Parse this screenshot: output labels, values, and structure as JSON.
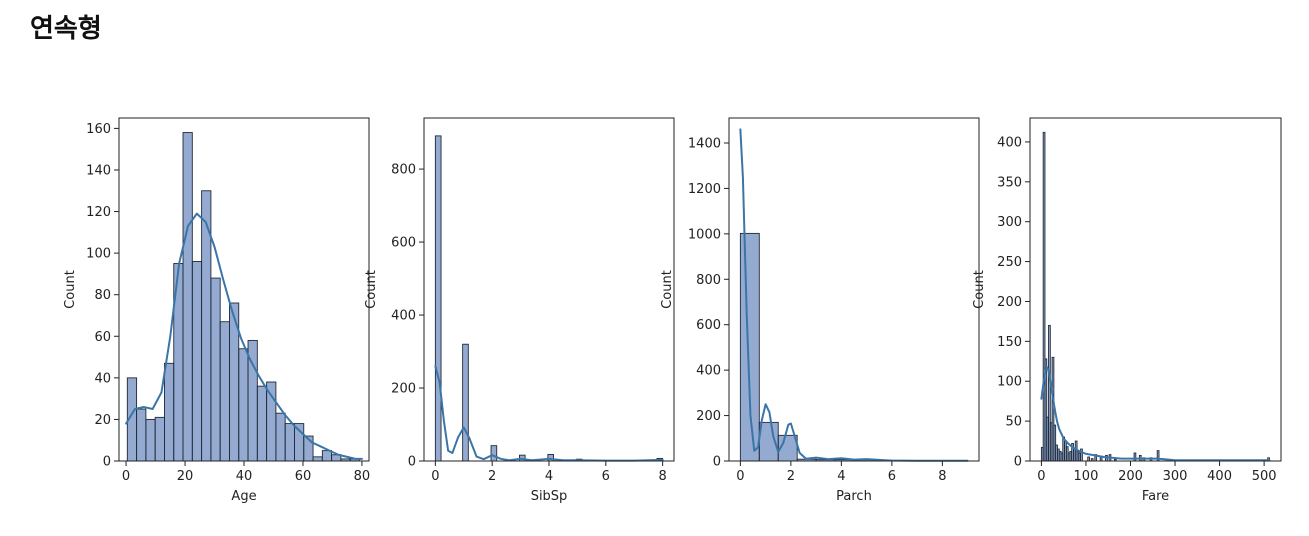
{
  "heading": "연속형",
  "style": {
    "bar_fill": "#4c72b0",
    "bar_fill_opacity": 0.6,
    "bar_edge": "#1f2a38",
    "kde_color": "#3b75a8"
  },
  "chart_data": [
    {
      "type": "bar",
      "xlabel": "Age",
      "ylabel": "Count",
      "xlim": [
        -2.4,
        82.4
      ],
      "ylim": [
        0,
        165
      ],
      "xticks": [
        0,
        20,
        40,
        60,
        80
      ],
      "yticks": [
        0,
        20,
        40,
        60,
        80,
        100,
        120,
        140,
        160
      ],
      "grid": false,
      "bins": [
        {
          "x0": 0.42,
          "x1": 3.57,
          "count": 40
        },
        {
          "x0": 3.57,
          "x1": 6.72,
          "count": 25
        },
        {
          "x0": 6.72,
          "x1": 9.87,
          "count": 20
        },
        {
          "x0": 9.87,
          "x1": 13.02,
          "count": 21
        },
        {
          "x0": 13.02,
          "x1": 16.17,
          "count": 47
        },
        {
          "x0": 16.17,
          "x1": 19.32,
          "count": 95
        },
        {
          "x0": 19.32,
          "x1": 22.47,
          "count": 158
        },
        {
          "x0": 22.47,
          "x1": 25.62,
          "count": 96
        },
        {
          "x0": 25.62,
          "x1": 28.77,
          "count": 130
        },
        {
          "x0": 28.77,
          "x1": 31.92,
          "count": 88
        },
        {
          "x0": 31.92,
          "x1": 35.07,
          "count": 67
        },
        {
          "x0": 35.07,
          "x1": 38.22,
          "count": 76
        },
        {
          "x0": 38.22,
          "x1": 41.37,
          "count": 54
        },
        {
          "x0": 41.37,
          "x1": 44.52,
          "count": 58
        },
        {
          "x0": 44.52,
          "x1": 47.67,
          "count": 36
        },
        {
          "x0": 47.67,
          "x1": 50.82,
          "count": 38
        },
        {
          "x0": 50.82,
          "x1": 53.97,
          "count": 23
        },
        {
          "x0": 53.97,
          "x1": 57.12,
          "count": 18
        },
        {
          "x0": 57.12,
          "x1": 60.27,
          "count": 18
        },
        {
          "x0": 60.27,
          "x1": 63.42,
          "count": 12
        },
        {
          "x0": 63.42,
          "x1": 66.57,
          "count": 2
        },
        {
          "x0": 66.57,
          "x1": 69.72,
          "count": 5
        },
        {
          "x0": 69.72,
          "x1": 72.87,
          "count": 3
        },
        {
          "x0": 72.87,
          "x1": 76.02,
          "count": 1
        },
        {
          "x0": 76.02,
          "x1": 79.17,
          "count": 1
        }
      ],
      "kde": {
        "x": [
          0,
          3,
          6,
          9,
          12,
          15,
          18,
          21,
          24,
          27,
          30,
          33,
          36,
          39,
          42,
          45,
          48,
          51,
          54,
          57,
          60,
          63,
          66,
          69,
          72,
          75,
          78,
          80
        ],
        "y": [
          18,
          25,
          26,
          25,
          33,
          60,
          95,
          113,
          119,
          115,
          103,
          87,
          72,
          59,
          49,
          41,
          34,
          28,
          22,
          17,
          13,
          9,
          7,
          5,
          3,
          2,
          1,
          1
        ]
      }
    },
    {
      "type": "bar",
      "xlabel": "SibSp",
      "ylabel": "Count",
      "xlim": [
        -0.4,
        8.4
      ],
      "ylim": [
        0,
        940
      ],
      "xticks": [
        0,
        2,
        4,
        6,
        8
      ],
      "yticks": [
        0,
        200,
        400,
        600,
        800
      ],
      "grid": false,
      "bins": [
        {
          "x0": 0.0,
          "x1": 0.2,
          "count": 891
        },
        {
          "x0": 0.96,
          "x1": 1.16,
          "count": 320
        },
        {
          "x0": 1.96,
          "x1": 2.16,
          "count": 42
        },
        {
          "x0": 2.96,
          "x1": 3.16,
          "count": 16
        },
        {
          "x0": 3.96,
          "x1": 4.16,
          "count": 18
        },
        {
          "x0": 4.96,
          "x1": 5.16,
          "count": 5
        },
        {
          "x0": 7.8,
          "x1": 8.0,
          "count": 7
        }
      ],
      "kde": {
        "x": [
          0,
          0.15,
          0.3,
          0.45,
          0.6,
          0.8,
          1.0,
          1.2,
          1.45,
          1.7,
          2.0,
          2.3,
          2.6,
          3.0,
          3.4,
          4.0,
          4.5,
          5.0,
          6.0,
          7.0,
          7.5,
          8.0
        ],
        "y": [
          260,
          215,
          110,
          28,
          22,
          65,
          92,
          62,
          12,
          5,
          16,
          6,
          2,
          6,
          2,
          6,
          2,
          2,
          1,
          1,
          2,
          3
        ]
      }
    },
    {
      "type": "bar",
      "xlabel": "Parch",
      "ylabel": "Count",
      "xlim": [
        -0.45,
        9.45
      ],
      "ylim": [
        0,
        1510
      ],
      "xticks": [
        0,
        2,
        4,
        6,
        8
      ],
      "yticks": [
        0,
        200,
        400,
        600,
        800,
        1000,
        1200,
        1400
      ],
      "grid": false,
      "bins": [
        {
          "x0": 0.0,
          "x1": 0.75,
          "count": 1002
        },
        {
          "x0": 0.75,
          "x1": 1.5,
          "count": 170
        },
        {
          "x0": 1.5,
          "x1": 2.25,
          "count": 113
        },
        {
          "x0": 2.25,
          "x1": 3.0,
          "count": 8
        },
        {
          "x0": 3.0,
          "x1": 3.75,
          "count": 6
        },
        {
          "x0": 3.75,
          "x1": 4.5,
          "count": 6
        },
        {
          "x0": 4.5,
          "x1": 5.25,
          "count": 6
        },
        {
          "x0": 5.25,
          "x1": 6.0,
          "count": 2
        },
        {
          "x0": 8.25,
          "x1": 9.0,
          "count": 2
        }
      ],
      "kde": {
        "x": [
          0,
          0.1,
          0.25,
          0.4,
          0.55,
          0.7,
          0.85,
          1.0,
          1.15,
          1.3,
          1.5,
          1.7,
          1.9,
          2.0,
          2.15,
          2.35,
          2.6,
          3.0,
          3.5,
          4.0,
          4.5,
          5.0,
          6.0,
          7.0,
          8.0,
          9.0
        ],
        "y": [
          1460,
          1250,
          650,
          200,
          45,
          60,
          180,
          250,
          215,
          110,
          40,
          80,
          160,
          165,
          110,
          35,
          10,
          15,
          8,
          12,
          6,
          8,
          2,
          1,
          1,
          1
        ]
      }
    },
    {
      "type": "bar",
      "xlabel": "Fare",
      "ylabel": "Count",
      "xlim": [
        -25.6,
        537.9
      ],
      "ylim": [
        0,
        430
      ],
      "xticks": [
        0,
        100,
        200,
        300,
        400,
        500
      ],
      "yticks": [
        0,
        50,
        100,
        150,
        200,
        250,
        300,
        350,
        400
      ],
      "grid": false,
      "bins": [
        {
          "x0": 0,
          "x1": 4,
          "count": 17
        },
        {
          "x0": 4,
          "x1": 8,
          "count": 412
        },
        {
          "x0": 8,
          "x1": 12,
          "count": 128
        },
        {
          "x0": 12,
          "x1": 16,
          "count": 55
        },
        {
          "x0": 16,
          "x1": 20,
          "count": 170
        },
        {
          "x0": 20,
          "x1": 24,
          "count": 48
        },
        {
          "x0": 24,
          "x1": 28,
          "count": 130
        },
        {
          "x0": 28,
          "x1": 32,
          "count": 45
        },
        {
          "x0": 32,
          "x1": 36,
          "count": 20
        },
        {
          "x0": 36,
          "x1": 40,
          "count": 15
        },
        {
          "x0": 40,
          "x1": 44,
          "count": 12
        },
        {
          "x0": 44,
          "x1": 48,
          "count": 10
        },
        {
          "x0": 48,
          "x1": 52,
          "count": 30
        },
        {
          "x0": 52,
          "x1": 56,
          "count": 25
        },
        {
          "x0": 56,
          "x1": 60,
          "count": 18
        },
        {
          "x0": 60,
          "x1": 64,
          "count": 10
        },
        {
          "x0": 64,
          "x1": 68,
          "count": 12
        },
        {
          "x0": 68,
          "x1": 72,
          "count": 22
        },
        {
          "x0": 72,
          "x1": 76,
          "count": 15
        },
        {
          "x0": 76,
          "x1": 80,
          "count": 25
        },
        {
          "x0": 80,
          "x1": 84,
          "count": 12
        },
        {
          "x0": 84,
          "x1": 88,
          "count": 10
        },
        {
          "x0": 88,
          "x1": 92,
          "count": 15
        },
        {
          "x0": 104,
          "x1": 108,
          "count": 5
        },
        {
          "x0": 112,
          "x1": 116,
          "count": 3
        },
        {
          "x0": 120,
          "x1": 124,
          "count": 8
        },
        {
          "x0": 132,
          "x1": 136,
          "count": 6
        },
        {
          "x0": 144,
          "x1": 148,
          "count": 7
        },
        {
          "x0": 152,
          "x1": 156,
          "count": 8
        },
        {
          "x0": 164,
          "x1": 168,
          "count": 2
        },
        {
          "x0": 208,
          "x1": 212,
          "count": 10
        },
        {
          "x0": 220,
          "x1": 224,
          "count": 7
        },
        {
          "x0": 228,
          "x1": 232,
          "count": 4
        },
        {
          "x0": 244,
          "x1": 248,
          "count": 4
        },
        {
          "x0": 260,
          "x1": 264,
          "count": 13
        },
        {
          "x0": 508,
          "x1": 512,
          "count": 4
        }
      ],
      "kde": {
        "x": [
          0,
          4,
          8,
          12,
          16,
          20,
          25,
          30,
          35,
          40,
          50,
          60,
          70,
          80,
          90,
          100,
          120,
          140,
          160,
          180,
          200,
          220,
          240,
          260,
          280,
          300,
          350,
          400,
          450,
          500,
          512
        ],
        "y": [
          78,
          95,
          110,
          118,
          114,
          100,
          82,
          65,
          50,
          40,
          28,
          22,
          17,
          14,
          11,
          9,
          7,
          5,
          4,
          3,
          3,
          3,
          3,
          3,
          2,
          1,
          1,
          1,
          1,
          1,
          1
        ]
      }
    }
  ]
}
